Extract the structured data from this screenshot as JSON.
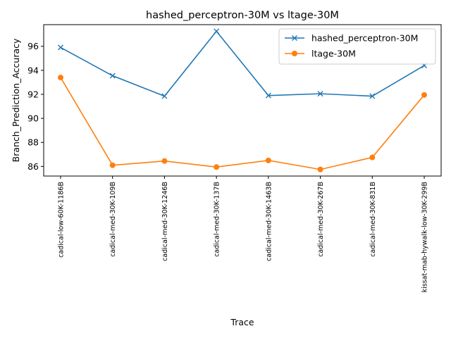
{
  "chart_data": {
    "type": "line",
    "title": "hashed_perceptron-30M vs ltage-30M",
    "xlabel": "Trace",
    "ylabel": "Branch_Prediction_Accuracy",
    "categories": [
      "cadical-low-60K-1186B",
      "cadical-med-30K-109B",
      "cadical-med-30K-1246B",
      "cadical-med-30K-137B",
      "cadical-med-30K-1463B",
      "cadical-med-30K-267B",
      "cadical-med-30K-831B",
      "kissat-mab-hywalk-low-30K-299B"
    ],
    "yticks": [
      86,
      88,
      90,
      92,
      94,
      96
    ],
    "ylim": [
      85.2,
      97.8
    ],
    "grid": false,
    "legend_position": "top-right",
    "series": [
      {
        "name": "hashed_perceptron-30M",
        "color": "#1f77b4",
        "marker": "x",
        "values": [
          95.9,
          93.55,
          91.85,
          97.25,
          91.9,
          92.05,
          91.85,
          94.4
        ]
      },
      {
        "name": "ltage-30M",
        "color": "#ff7f0e",
        "marker": "o",
        "values": [
          93.4,
          86.1,
          86.45,
          85.95,
          86.5,
          85.75,
          86.75,
          91.95
        ]
      }
    ]
  }
}
